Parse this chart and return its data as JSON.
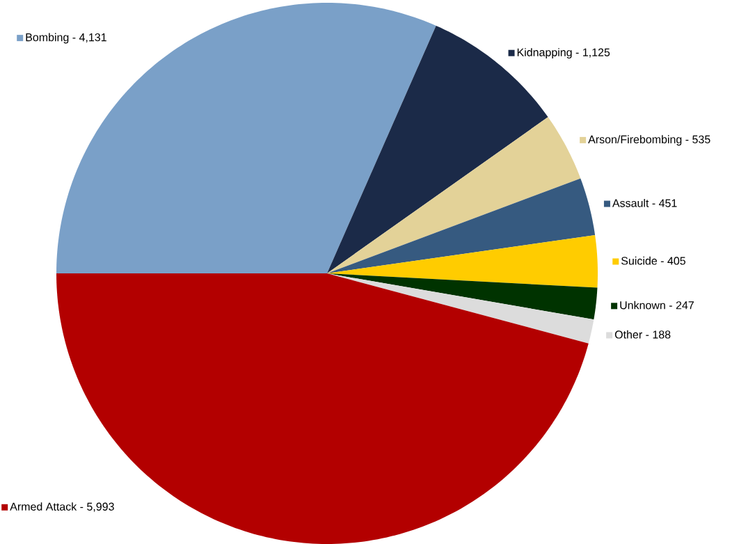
{
  "chart_data": {
    "type": "pie",
    "categories": [
      "Bombing -",
      "Kidnapping -",
      "Arson/Firebombing -",
      "Assault -",
      "Suicide -",
      "Unknown -",
      "Other -",
      "Armed Attack -"
    ],
    "values": [
      4131,
      1125,
      535,
      451,
      405,
      247,
      188,
      5993
    ],
    "value_labels": [
      "4,131",
      "1,125",
      "535",
      "451",
      "405",
      "247",
      "188",
      "5,993"
    ],
    "colors": [
      "#7aa0c8",
      "#1b2a48",
      "#e3d298",
      "#365a80",
      "#ffcc00",
      "#003300",
      "#dcdcdc",
      "#b30000"
    ],
    "legend": "right"
  }
}
